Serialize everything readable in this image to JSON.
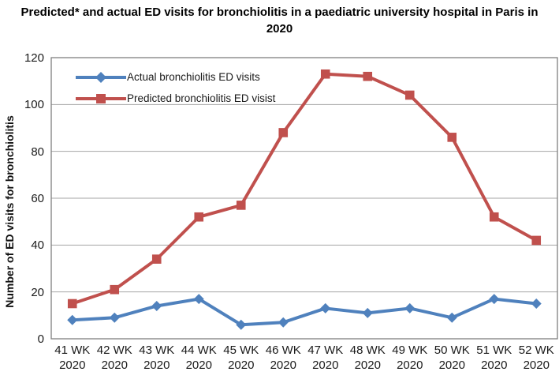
{
  "chart_data": {
    "type": "line",
    "title": "Predicted* and actual ED visits for bronchiolitis in a paediatric university hospital in Paris in 2020",
    "xlabel": "",
    "ylabel": "Number of ED visits for bronchiolitis",
    "ylim": [
      0,
      120
    ],
    "yticks": [
      0,
      20,
      40,
      60,
      80,
      100,
      120
    ],
    "grid": true,
    "legend_position": "top-left-inside",
    "categories": [
      "41 WK 2020",
      "42 WK 2020",
      "43 WK 2020",
      "44 WK 2020",
      "45 WK 2020",
      "46 WK 2020",
      "47 WK 2020",
      "48 WK 2020",
      "49 WK 2020",
      "50 WK 2020",
      "51 WK 2020",
      "52 WK 2020"
    ],
    "series": [
      {
        "name": "Actual bronchiolitis ED visits",
        "marker": "diamond",
        "color": "#4F81BD",
        "values": [
          8,
          9,
          14,
          17,
          6,
          7,
          13,
          11,
          13,
          9,
          17,
          15
        ]
      },
      {
        "name": "Predicted bronchiolitis ED visist",
        "marker": "square",
        "color": "#C0504D",
        "values": [
          15,
          21,
          34,
          52,
          57,
          88,
          113,
          112,
          104,
          86,
          52,
          42
        ]
      }
    ],
    "colors": {
      "gridline": "#A6A6A6",
      "plot_border": "#808080",
      "text": "#1A1A1A",
      "background": "#FFFFFF"
    }
  }
}
